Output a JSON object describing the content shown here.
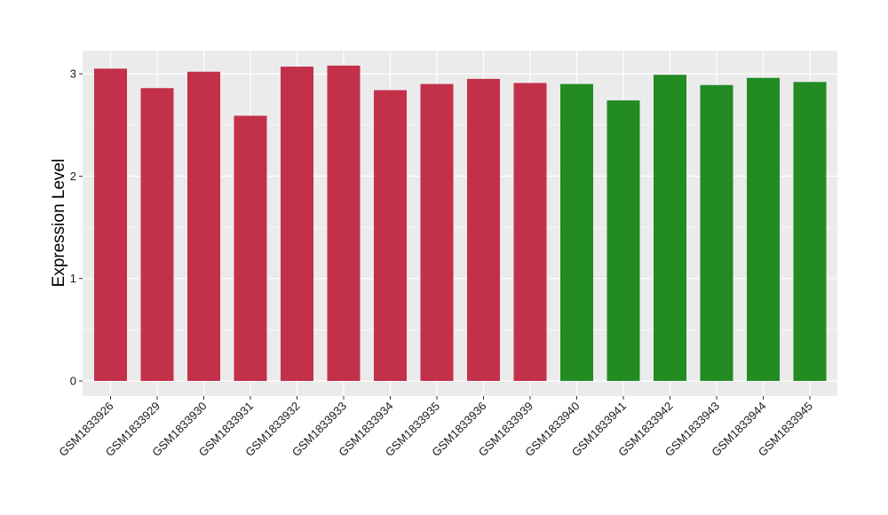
{
  "chart_data": {
    "type": "bar",
    "ylabel": "Expression Level",
    "xlabel": "",
    "ylim": [
      0,
      3.3
    ],
    "yticks": [
      0,
      1,
      2,
      3
    ],
    "ytick_labels": [
      "0",
      "1",
      "2",
      "3"
    ],
    "grid": true,
    "legend": "none",
    "categories": [
      "GSM1833926",
      "GSM1833929",
      "GSM1833930",
      "GSM1833931",
      "GSM1833932",
      "GSM1833933",
      "GSM1833934",
      "GSM1833935",
      "GSM1833936",
      "GSM1833939",
      "GSM1833940",
      "GSM1833941",
      "GSM1833942",
      "GSM1833943",
      "GSM1833944",
      "GSM1833945"
    ],
    "values": [
      3.05,
      2.86,
      3.02,
      2.59,
      3.07,
      3.08,
      2.84,
      2.9,
      2.95,
      2.91,
      2.9,
      2.74,
      2.99,
      2.89,
      2.96,
      2.92
    ],
    "bar_colors": [
      "#C3304A",
      "#C3304A",
      "#C3304A",
      "#C3304A",
      "#C3304A",
      "#C3304A",
      "#C3304A",
      "#C3304A",
      "#C3304A",
      "#C3304A",
      "#228B22",
      "#228B22",
      "#228B22",
      "#228B22",
      "#228B22",
      "#228B22"
    ],
    "colors": {
      "panel_background": "#EBEBEB",
      "grid_major": "#FFFFFF",
      "group_a": "#C3304A",
      "group_b": "#228B22"
    }
  }
}
